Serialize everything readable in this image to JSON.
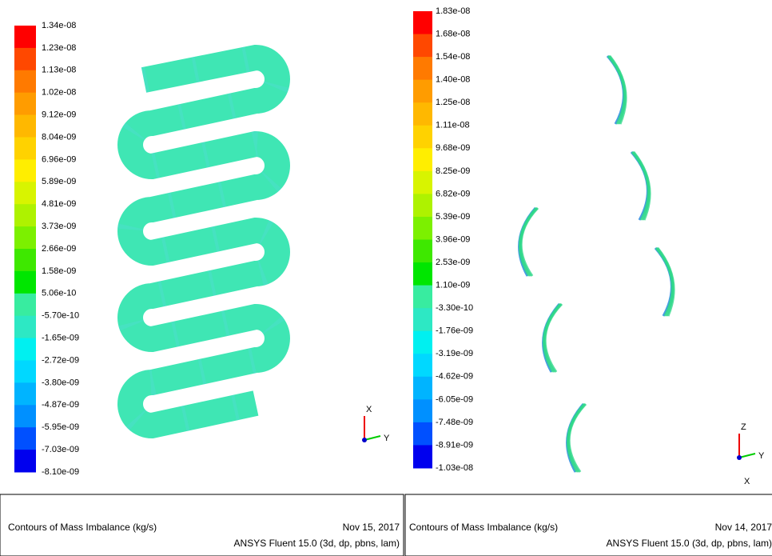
{
  "panels": [
    {
      "legend": [
        "1.34e-08",
        "1.23e-08",
        "1.13e-08",
        "1.02e-08",
        "9.12e-09",
        "8.04e-09",
        "6.96e-09",
        "5.89e-09",
        "4.81e-09",
        "3.73e-09",
        "2.66e-09",
        "1.58e-09",
        "5.06e-10",
        "-5.70e-10",
        "-1.65e-09",
        "-2.72e-09",
        "-3.80e-09",
        "-4.87e-09",
        "-5.95e-09",
        "-7.03e-09",
        "-8.10e-09"
      ],
      "caption": "Contours of Mass Imbalance (kg/s)",
      "date": "Nov 15, 2017",
      "software": "ANSYS Fluent 15.0 (3d, dp, pbns, lam)",
      "axes": [
        "X",
        "Y"
      ]
    },
    {
      "legend": [
        "1.83e-08",
        "1.68e-08",
        "1.54e-08",
        "1.40e-08",
        "1.25e-08",
        "1.11e-08",
        "9.68e-09",
        "8.25e-09",
        "6.82e-09",
        "5.39e-09",
        "3.96e-09",
        "2.53e-09",
        "1.10e-09",
        "-3.30e-10",
        "-1.76e-09",
        "-3.19e-09",
        "-4.62e-09",
        "-6.05e-09",
        "-7.48e-09",
        "-8.91e-09",
        "-1.03e-08"
      ],
      "caption": "Contours of Mass Imbalance (kg/s)",
      "date": "Nov 14, 2017",
      "software": "ANSYS Fluent 15.0 (3d, dp, pbns, lam)",
      "axes": [
        "Z",
        "Y",
        "X"
      ]
    }
  ]
}
